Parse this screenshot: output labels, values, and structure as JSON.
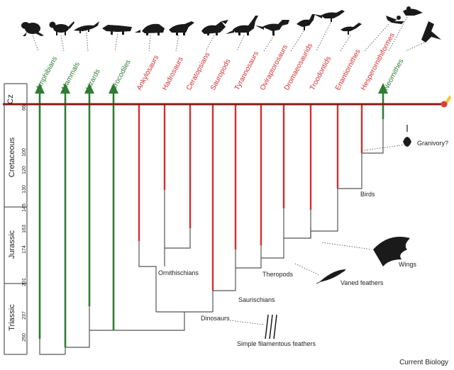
{
  "timescale": {
    "periods": [
      {
        "key": "cz",
        "label": "Cz"
      },
      {
        "key": "cretaceous",
        "label": "Cretaceous"
      },
      {
        "key": "jurassic",
        "label": "Jurassic"
      },
      {
        "key": "triassic",
        "label": "Triassic"
      }
    ],
    "ticks": [
      "66",
      "100",
      "120",
      "130",
      "145",
      "163",
      "174",
      "201",
      "237",
      "250"
    ]
  },
  "taxa": [
    {
      "key": "amphibians",
      "label": "Amphibians",
      "color": "#2e7d32"
    },
    {
      "key": "mammals",
      "label": "Mammals",
      "color": "#2e7d32"
    },
    {
      "key": "lizards",
      "label": "Lizards",
      "color": "#2e7d32"
    },
    {
      "key": "crocodiles",
      "label": "Crocodiles",
      "color": "#2e7d32"
    },
    {
      "key": "ankylosaurs",
      "label": "Ankylosaurs",
      "color": "#d32f2f"
    },
    {
      "key": "hadrosaurs",
      "label": "Hadrosaurs",
      "color": "#d32f2f"
    },
    {
      "key": "ceratopsians",
      "label": "Ceratopsians",
      "color": "#d32f2f"
    },
    {
      "key": "sauropods",
      "label": "Sauropods",
      "color": "#d32f2f"
    },
    {
      "key": "tyrannosaurs",
      "label": "Tyrannosaurs",
      "color": "#d32f2f"
    },
    {
      "key": "oviraptorosaurs",
      "label": "Oviraptorosaurs",
      "color": "#d32f2f"
    },
    {
      "key": "dromaeosaurids",
      "label": "Dromaeosaurids",
      "color": "#d32f2f"
    },
    {
      "key": "troodontids",
      "label": "Troodontids",
      "color": "#d32f2f"
    },
    {
      "key": "enantiornithes",
      "label": "Enantiornithes",
      "color": "#d32f2f"
    },
    {
      "key": "hesperornithiformes",
      "label": "Hesperornithiformes",
      "color": "#d32f2f"
    },
    {
      "key": "neornithes",
      "label": "Neornithes",
      "color": "#2e7d32"
    }
  ],
  "nodes": {
    "ornithischians": "Ornithischians",
    "theropods": "Theropods",
    "saurischians": "Saurischians",
    "dinosaurs": "Dinosaurs",
    "birds": "Birds"
  },
  "annotations": {
    "granivory": "Granivory?",
    "wings": "Wings",
    "vaned_feathers": "Vaned feathers",
    "simple_feathers": "Simple filamentous feathers"
  },
  "credit": "Current Biology",
  "colors": {
    "boundary": "#8b1a1a",
    "extinct": "#d32f2f",
    "surviving": "#2e7d32",
    "tree": "#555555"
  }
}
